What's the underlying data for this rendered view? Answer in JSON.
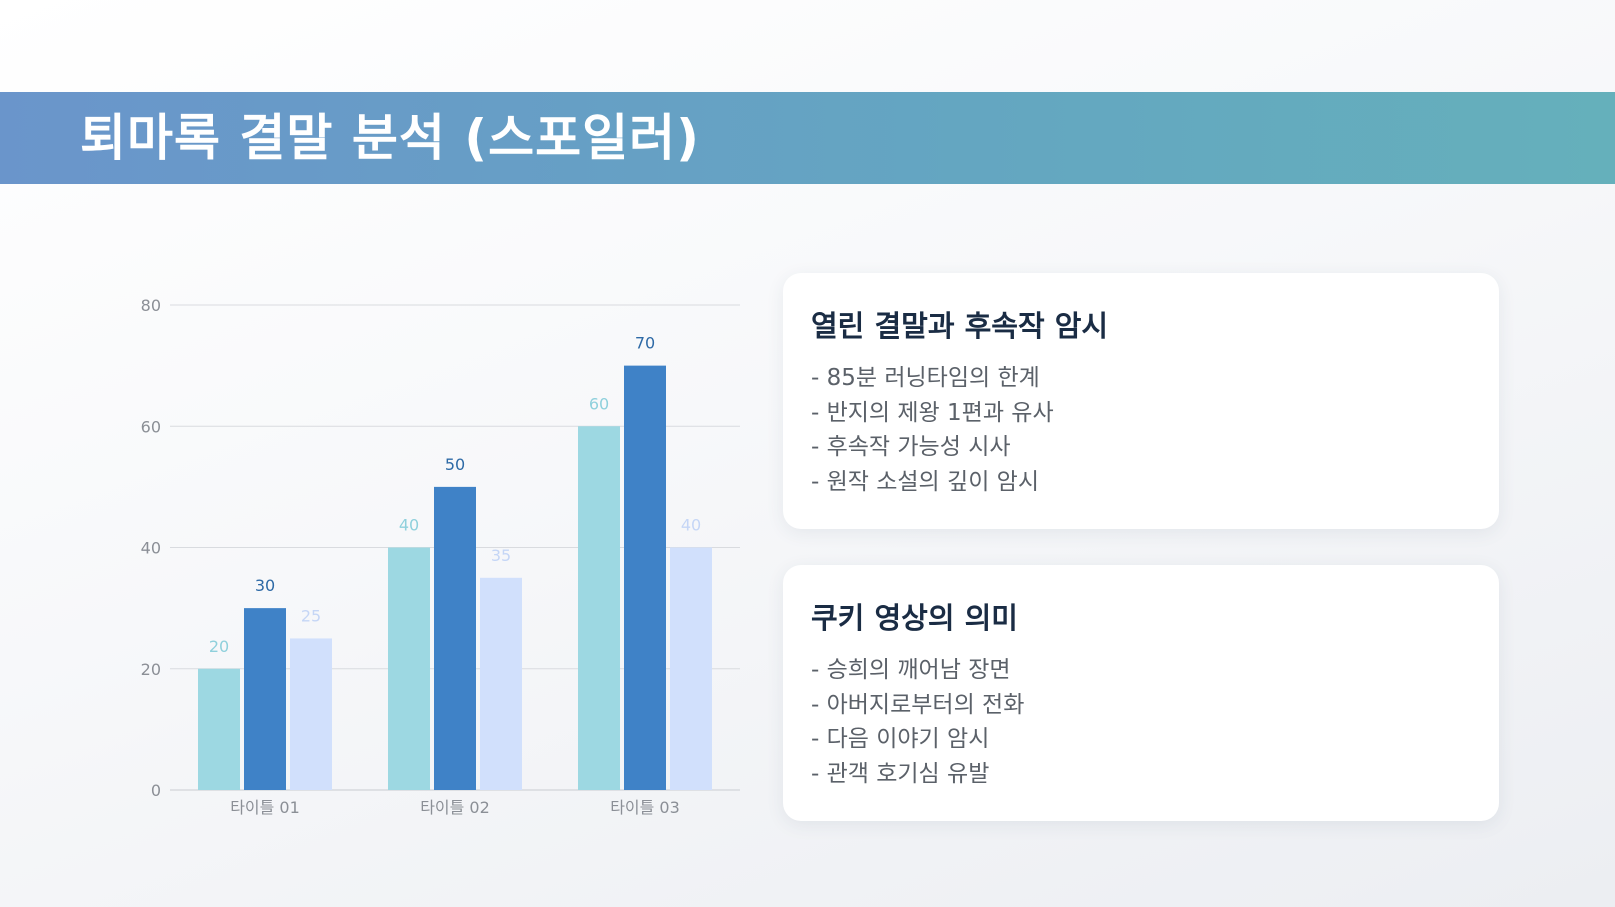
{
  "title": "퇴마록 결말 분석 (스포일러)",
  "colors": {
    "series_1": "#9dd8e2",
    "series_2": "#3f82c7",
    "series_3": "#d1e0fc",
    "label_series_1": "#8fd0dc",
    "label_series_2": "#2e6aa6",
    "label_series_3": "#c5d6f6",
    "title_bar_start": "#6a95cb",
    "title_bar_end": "#65b0bb"
  },
  "chart_data": {
    "type": "bar",
    "categories": [
      "타이틀 01",
      "타이틀 02",
      "타이틀 03"
    ],
    "series": [
      {
        "values": [
          20,
          40,
          60
        ]
      },
      {
        "values": [
          30,
          50,
          70
        ]
      },
      {
        "values": [
          25,
          35,
          40
        ]
      }
    ],
    "y_ticks": [
      "0",
      "20",
      "40",
      "60",
      "80"
    ],
    "ylim": [
      0,
      80
    ],
    "grid": true,
    "data_labels": true,
    "legend": "none"
  },
  "cards": [
    {
      "title": "열린 결말과 후속작 암시",
      "items": [
        "- 85분 러닝타임의 한계",
        "- 반지의 제왕 1편과 유사",
        "- 후속작 가능성 시사",
        "- 원작 소설의 깊이 암시"
      ]
    },
    {
      "title": "쿠키 영상의 의미",
      "items": [
        "- 승희의 깨어남 장면",
        "- 아버지로부터의 전화",
        "- 다음 이야기 암시",
        "- 관객 호기심 유발"
      ]
    }
  ]
}
